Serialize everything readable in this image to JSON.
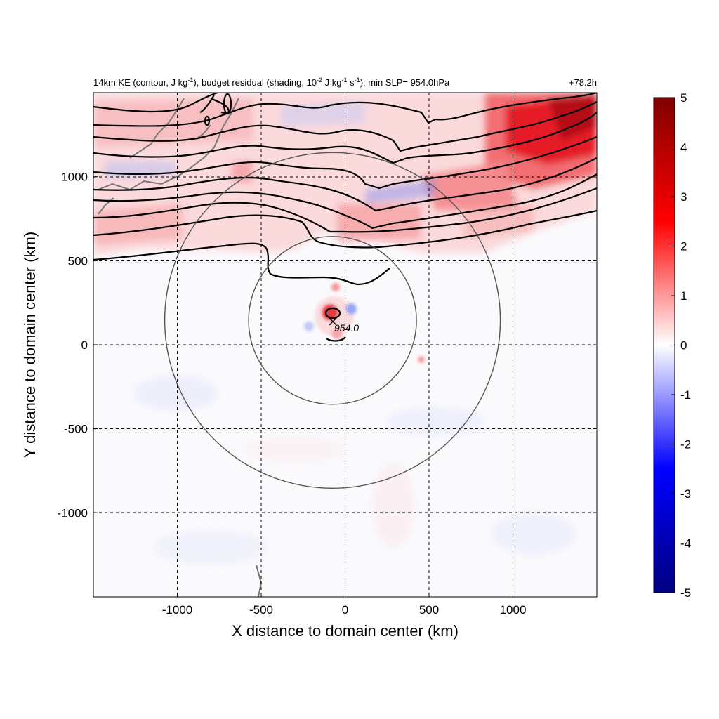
{
  "title_parts": {
    "p1": "14km KE (contour, J kg",
    "p1_sup": "-1",
    "p2": "), budget residual (shading, 10",
    "p2_sup": "-2",
    "p3": " J kg",
    "p3_sup": "-1",
    "p4": " s",
    "p4_sup": "-1",
    "p5": "); min SLP= 954.0hPa"
  },
  "time_label": "+78.2h",
  "chart_data": {
    "type": "heatmap",
    "title": "14km KE (contour, J kg-1), budget residual (shading, 10-2 J kg-1 s-1); min SLP= 954.0hPa",
    "xlabel": "X distance to domain center (km)",
    "ylabel": "Y distance to domain center (km)",
    "xlim": [
      -1500,
      1500
    ],
    "ylim": [
      -1500,
      1500
    ],
    "xticks": [
      -1000,
      -500,
      0,
      500,
      1000
    ],
    "xtick_labels": [
      "-1000",
      "-500",
      "0",
      "500",
      "1000"
    ],
    "yticks": [
      -1000,
      -500,
      0,
      500,
      1000
    ],
    "ytick_labels": [
      "-1000",
      "-500",
      "0",
      "500",
      "1000"
    ],
    "grid": true,
    "colorbar": {
      "min": -5,
      "max": 5,
      "ticks": [
        5,
        4,
        3,
        2,
        1,
        0,
        -1,
        -2,
        -3,
        -4,
        -5
      ],
      "tick_labels": [
        "5",
        "4",
        "3",
        "2",
        "1",
        "0",
        "-1",
        "-2",
        "-3",
        "-4",
        "-5"
      ],
      "colors": [
        "#000080",
        "#0000ff",
        "#ffffff",
        "#ff0000",
        "#800000"
      ]
    },
    "storm_center": {
      "x": -75,
      "y": 145
    },
    "rings_km": [
      500,
      1000
    ],
    "min_slp_label": "954.0"
  }
}
